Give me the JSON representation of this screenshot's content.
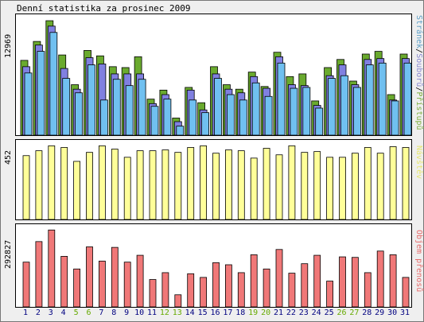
{
  "title": "Denní statistika za prosinec 2009",
  "chart_data": [
    {
      "type": "bar",
      "id": "hits",
      "ymax_label": "12969",
      "legend_right": [
        {
          "text": "Stránek",
          "color": "#5fa0c8"
        },
        {
          "text": "/",
          "color": "#000000"
        },
        {
          "text": "Souborů",
          "color": "#8a8ad2"
        },
        {
          "text": "/",
          "color": "#000000"
        },
        {
          "text": "Přístupů",
          "color": "#7fb03f"
        }
      ],
      "ylim": [
        0,
        12969
      ],
      "series": [
        {
          "name": "Přístupů",
          "color": "#6aaa2e",
          "values": [
            8300,
            10400,
            12700,
            8900,
            5600,
            9400,
            8800,
            7600,
            7500,
            8700,
            4000,
            5000,
            1900,
            5300,
            3600,
            7600,
            5600,
            5100,
            7000,
            5400,
            9200,
            6500,
            6800,
            3800,
            7500,
            8400,
            6000,
            9000,
            9300,
            4500,
            9000
          ]
        },
        {
          "name": "Souborů",
          "color": "#8080e0",
          "values": [
            7600,
            10000,
            12100,
            7400,
            5100,
            8600,
            7900,
            6800,
            6800,
            6800,
            3500,
            4500,
            1500,
            5000,
            2800,
            6800,
            5100,
            4700,
            6500,
            5200,
            8700,
            5600,
            5500,
            3300,
            6600,
            7800,
            5600,
            8400,
            8500,
            3900,
            8500
          ]
        },
        {
          "name": "Stránek",
          "color": "#70c0f0",
          "values": [
            6900,
            9300,
            11400,
            6300,
            4700,
            7800,
            3900,
            6200,
            5500,
            6200,
            3200,
            4000,
            1000,
            3900,
            2500,
            6300,
            4500,
            3900,
            5800,
            4300,
            8000,
            5200,
            5300,
            3000,
            6300,
            6600,
            5300,
            7800,
            8000,
            3800,
            8000
          ]
        }
      ]
    },
    {
      "type": "bar",
      "id": "visits",
      "ymax_label": "452",
      "legend_right": [
        {
          "text": "Návštěv",
          "color": "#e8e870"
        }
      ],
      "ylim": [
        0,
        452
      ],
      "series": [
        {
          "name": "Návštěv",
          "color": "#ffff99",
          "values": [
            390,
            420,
            450,
            440,
            355,
            410,
            450,
            430,
            380,
            420,
            420,
            425,
            410,
            440,
            450,
            405,
            425,
            420,
            375,
            435,
            395,
            450,
            410,
            415,
            380,
            380,
            405,
            440,
            405,
            445,
            440
          ]
        }
      ]
    },
    {
      "type": "bar",
      "id": "traffic",
      "ymax_label": "292827",
      "legend_right": [
        {
          "text": "Objem přenosů",
          "color": "#e86a6a"
        }
      ],
      "ylim": [
        0,
        292827
      ],
      "series": [
        {
          "name": "Objem přenosů",
          "color": "#f07878",
          "values": [
            170000,
            248000,
            292000,
            192000,
            144000,
            228000,
            174000,
            226000,
            170000,
            196000,
            104000,
            130000,
            46000,
            126000,
            112000,
            168000,
            160000,
            130000,
            198000,
            144000,
            218000,
            128000,
            164000,
            196000,
            98000,
            190000,
            188000,
            130000,
            212000,
            198000,
            112000
          ]
        }
      ]
    }
  ],
  "x_labels": [
    "1",
    "2",
    "3",
    "4",
    "5",
    "6",
    "7",
    "8",
    "9",
    "10",
    "11",
    "12",
    "13",
    "14",
    "15",
    "16",
    "17",
    "18",
    "19",
    "20",
    "21",
    "22",
    "23",
    "24",
    "25",
    "26",
    "27",
    "28",
    "29",
    "30",
    "31"
  ],
  "weekend_days": [
    5,
    6,
    12,
    13,
    19,
    20,
    26,
    27
  ],
  "colors": {
    "weekday": "#000080",
    "weekend": "#66aa00"
  }
}
